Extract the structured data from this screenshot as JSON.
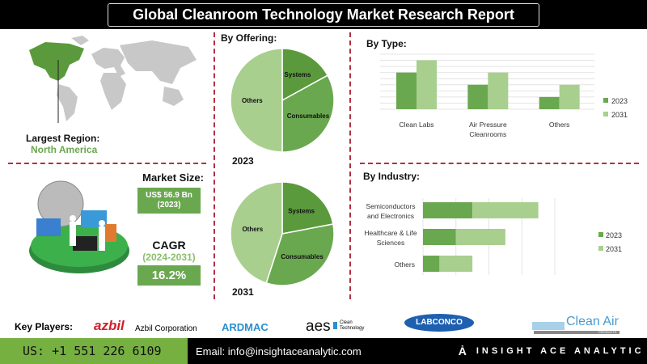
{
  "title": "Global Cleanroom Technology Market Research Report",
  "region": {
    "label": "Largest Region:",
    "value": "North America"
  },
  "market_size": {
    "label": "Market Size:",
    "value": "US$ 56.9 Bn",
    "year": "(2023)"
  },
  "cagr": {
    "label": "CAGR",
    "period": "(2024-2031)",
    "value": "16.2%"
  },
  "colors": {
    "dark_green": "#5b9a3c",
    "mid_green": "#6aa84f",
    "light_green": "#a8cf8e",
    "accent_red": "#b03040"
  },
  "key_players": {
    "label": "Key Players:",
    "companies": [
      "azbil",
      "Azbil Corporation",
      "ARDMAC",
      "aes",
      "Clean Technology",
      "LABCONCO",
      "Clean Air",
      "PRODUCTS"
    ]
  },
  "footer": {
    "phone": "US: +1 551 226 6109",
    "email": "Email: info@insightaceanalytic.com",
    "brand": "INSIGHT ACE ANALYTIC"
  },
  "chart_data": [
    {
      "type": "pie",
      "title": "By Offering:",
      "caption": "2023",
      "labels": [
        "Systems",
        "Consumables",
        "Others"
      ],
      "values": [
        17,
        33,
        50
      ]
    },
    {
      "type": "pie",
      "caption": "2031",
      "labels": [
        "Systems",
        "Consumables",
        "Others"
      ],
      "values": [
        22,
        33,
        45
      ]
    },
    {
      "type": "bar",
      "title": "By  Type:",
      "categories": [
        "Clean Labs",
        "Air Pressure Cleanrooms",
        "Others"
      ],
      "series": [
        {
          "name": "2023",
          "values": [
            6,
            4,
            2
          ]
        },
        {
          "name": "2031",
          "values": [
            8,
            6,
            4
          ]
        }
      ],
      "ylim": [
        0,
        9
      ],
      "grid": true,
      "legend": "right"
    },
    {
      "type": "bar",
      "orientation": "horizontal",
      "stacked": true,
      "title": "By Industry:",
      "categories": [
        "Semiconductors and Electronics",
        "Healthcare & Life Sciences",
        "Others"
      ],
      "series": [
        {
          "name": "2023",
          "values": [
            1.5,
            1,
            0.5
          ]
        },
        {
          "name": "2031",
          "values": [
            2,
            1.5,
            1
          ]
        }
      ],
      "xlim": [
        0,
        4
      ],
      "grid": true,
      "legend": "right"
    }
  ]
}
